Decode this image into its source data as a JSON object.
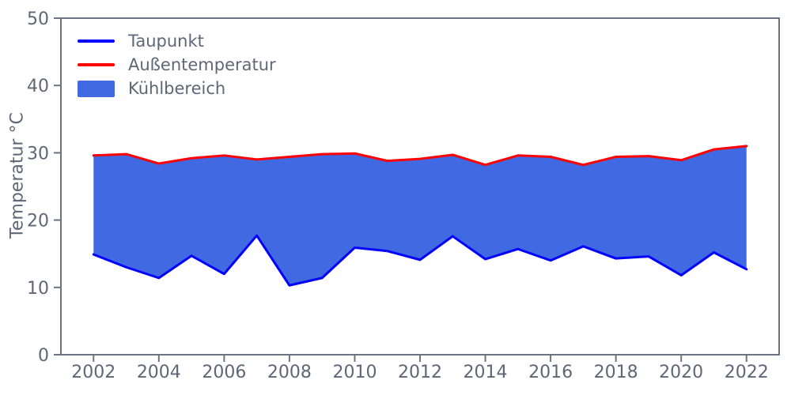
{
  "colors": {
    "background": "#ffffff",
    "text": "#5d6775",
    "spine": "#6b7480"
  },
  "chart_data": {
    "type": "area",
    "title": "",
    "xlabel": "",
    "ylabel": "Temperatur °C",
    "x": [
      2002,
      2003,
      2004,
      2005,
      2006,
      2007,
      2008,
      2009,
      2010,
      2011,
      2012,
      2013,
      2014,
      2015,
      2016,
      2017,
      2018,
      2019,
      2020,
      2021,
      2022
    ],
    "series": [
      {
        "name": "Taupunkt",
        "color": "#0000ff",
        "values": [
          14.9,
          13.0,
          11.4,
          14.7,
          12.0,
          17.7,
          10.3,
          11.4,
          15.9,
          15.4,
          14.1,
          17.6,
          14.2,
          15.7,
          14.0,
          16.1,
          14.3,
          14.6,
          11.8,
          15.2,
          12.7
        ]
      },
      {
        "name": "Außentemperatur",
        "color": "#ff0000",
        "values": [
          29.6,
          29.8,
          28.4,
          29.2,
          29.6,
          29.0,
          29.4,
          29.8,
          29.9,
          28.8,
          29.1,
          29.7,
          28.2,
          29.6,
          29.4,
          28.2,
          29.4,
          29.5,
          28.9,
          30.5,
          31.0
        ]
      }
    ],
    "fill_between": {
      "name": "Kühlbereich",
      "color": "#4169e1",
      "lower_series": "Taupunkt",
      "upper_series": "Außentemperatur"
    },
    "xlim": [
      2001,
      2023
    ],
    "ylim": [
      0,
      50
    ],
    "xticks": [
      2002,
      2004,
      2006,
      2008,
      2010,
      2012,
      2014,
      2016,
      2018,
      2020,
      2022
    ],
    "yticks": [
      0,
      10,
      20,
      30,
      40,
      50
    ],
    "grid": false,
    "legend_position": "upper left"
  }
}
